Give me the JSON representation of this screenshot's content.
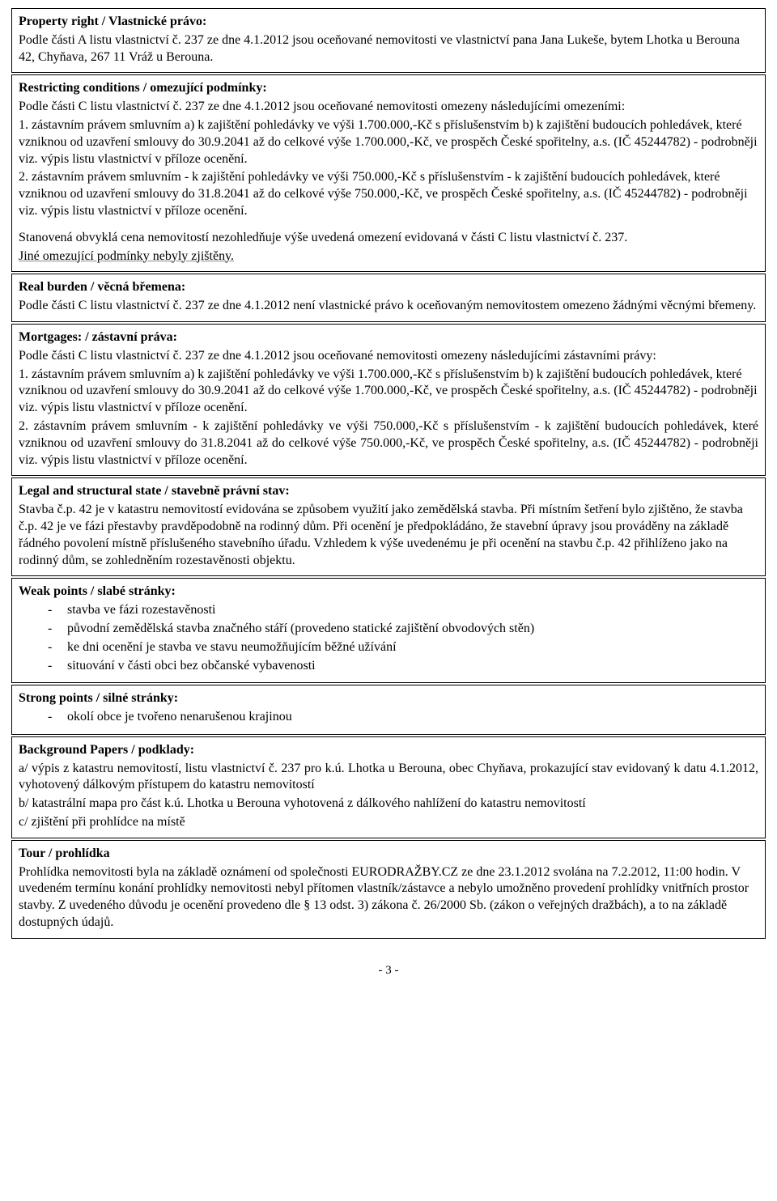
{
  "property_right": {
    "heading": "Property right / Vlastnické právo:",
    "body": "Podle části A listu vlastnictví č. 237 ze dne 4.1.2012 jsou oceňované nemovitosti ve vlastnictví pana Jana Lukeše, bytem Lhotka u Berouna 42, Chyňava, 267 11 Vráž u Berouna."
  },
  "restricting": {
    "heading": "Restricting conditions / omezující podmínky:",
    "intro": "Podle části C listu vlastnictví č. 237 ze dne 4.1.2012 jsou oceňované nemovitosti omezeny následujícími omezeními:",
    "item1": "1. zástavním právem smluvním a) k zajištění pohledávky ve výši 1.700.000,-Kč s příslušenstvím b) k zajištění budoucích pohledávek, které vzniknou od uzavření smlouvy do 30.9.2041 až do celkové výše 1.700.000,-Kč, ve prospěch České spořitelny, a.s. (IČ 45244782) - podrobněji viz. výpis listu vlastnictví v příloze ocenění.",
    "item2": "2. zástavním právem smluvním - k zajištění pohledávky ve výši 750.000,-Kč s příslušenstvím - k zajištění budoucích pohledávek, které vzniknou od uzavření smlouvy do 31.8.2041 až do celkové výše 750.000,-Kč, ve prospěch České spořitelny, a.s. (IČ 45244782) - podrobněji viz. výpis listu vlastnictví v příloze ocenění.",
    "note1": "Stanovená obvyklá cena nemovitostí nezohledňuje výše uvedená omezení evidovaná v části C listu vlastnictví č. 237.",
    "note2": "Jiné omezující podmínky nebyly zjištěny."
  },
  "real_burden": {
    "heading": "Real burden / věcná břemena:",
    "body": "Podle části C listu vlastnictví č. 237 ze dne 4.1.2012 není vlastnické právo k oceňovaným nemovitostem omezeno žádnými věcnými břemeny."
  },
  "mortgages": {
    "heading": "Mortgages: / zástavní práva:",
    "intro": "Podle části C listu vlastnictví č. 237 ze dne 4.1.2012 jsou oceňované nemovitosti omezeny následujícími zástavními právy:",
    "item1": "1. zástavním právem smluvním a) k zajištění pohledávky ve výši 1.700.000,-Kč s příslušenstvím b) k zajištění budoucích pohledávek, které vzniknou od uzavření smlouvy do 30.9.2041 až do celkové výše 1.700.000,-Kč, ve prospěch České spořitelny, a.s. (IČ 45244782) - podrobněji viz. výpis listu vlastnictví v příloze ocenění.",
    "item2": "2. zástavním právem smluvním - k zajištění pohledávky ve výši 750.000,-Kč s příslušenstvím - k zajištění budoucích pohledávek, které vzniknou od uzavření smlouvy do 31.8.2041 až do celkové výše 750.000,-Kč, ve prospěch České spořitelny, a.s. (IČ 45244782) - podrobněji viz. výpis listu vlastnictví v příloze ocenění."
  },
  "legal_state": {
    "heading": "Legal and structural state / stavebně právní stav:",
    "body": "Stavba č.p. 42 je v katastru nemovitostí evidována se způsobem využití jako zemědělská stavba. Při místním šetření bylo zjištěno, že stavba č.p. 42 je ve fázi přestavby pravděpodobně na rodinný dům. Při ocenění je předpokládáno, že stavební úpravy jsou prováděny na základě řádného povolení místně příslušeného stavebního úřadu. Vzhledem k výše uvedenému je při ocenění na stavbu č.p. 42 přihlíženo jako na rodinný dům, se zohledněním rozestavěnosti objektu."
  },
  "weak_points": {
    "heading": "Weak points / slabé stránky:",
    "items": [
      "stavba ve fázi rozestavěnosti",
      "původní zemědělská stavba značného stáří (provedeno statické zajištění obvodových stěn)",
      "ke dni ocenění je stavba ve stavu neumožňujícím běžné užívání",
      "situování v části obci bez občanské vybavenosti"
    ]
  },
  "strong_points": {
    "heading": "Strong points / silné stránky:",
    "items": [
      "okolí obce je tvořeno nenarušenou krajinou"
    ]
  },
  "background": {
    "heading": "Background Papers / podklady:",
    "a": "a/ výpis z katastru nemovitostí, listu vlastnictví č. 237 pro k.ú. Lhotka u Berouna, obec Chyňava, prokazující stav evidovaný k datu 4.1.2012, vyhotovený dálkovým přístupem do katastru nemovitostí",
    "b": "b/ katastrální mapa pro část k.ú. Lhotka u Berouna vyhotovená z dálkového nahlížení do katastru nemovitostí",
    "c": "c/ zjištění při prohlídce na místě"
  },
  "tour": {
    "heading": "Tour / prohlídka",
    "body": "Prohlídka nemovitosti byla na základě oznámení od společnosti EURODRAŽBY.CZ ze dne 23.1.2012 svolána na 7.2.2012, 11:00 hodin. V uvedeném termínu konání prohlídky nemovitosti nebyl přítomen vlastník/zástavce a nebylo umožněno provedení prohlídky vnitřních prostor stavby. Z uvedeného důvodu je ocenění provedeno dle § 13 odst. 3) zákona č. 26/2000 Sb. (zákon o veřejných dražbách), a to na základě dostupných údajů."
  },
  "page_number": "- 3 -"
}
